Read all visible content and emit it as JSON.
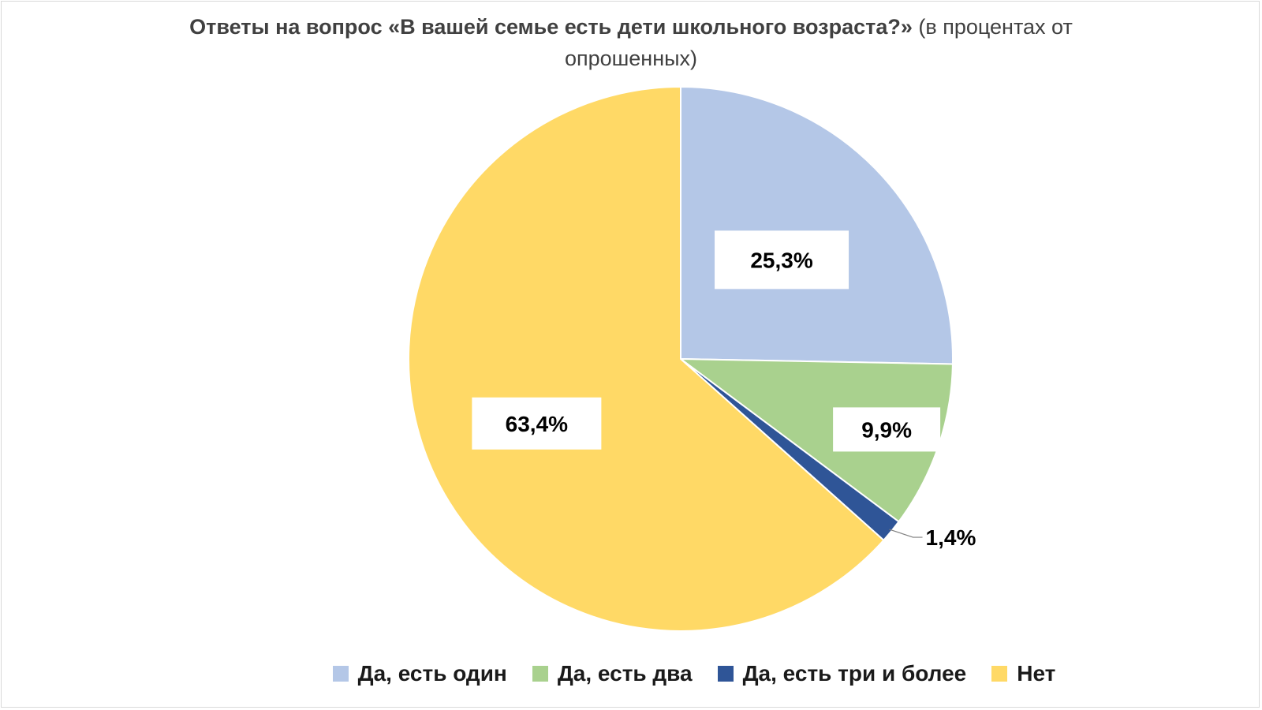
{
  "chart_data": {
    "type": "pie",
    "title_bold": "Ответы на вопрос «В вашей семье есть дети школьного возраста?»",
    "title_regular": "(в процентах от опрошенных)",
    "categories": [
      "Да, есть один",
      "Да, есть два",
      "Да, есть три и более",
      "Нет"
    ],
    "values": [
      25.3,
      9.9,
      1.4,
      63.4
    ],
    "data_labels": [
      "25,3%",
      "9,9%",
      "1,4%",
      "63,4%"
    ],
    "colors": [
      "#b4c7e7",
      "#a9d18e",
      "#2f5597",
      "#ffd966"
    ],
    "legend_position": "bottom"
  }
}
